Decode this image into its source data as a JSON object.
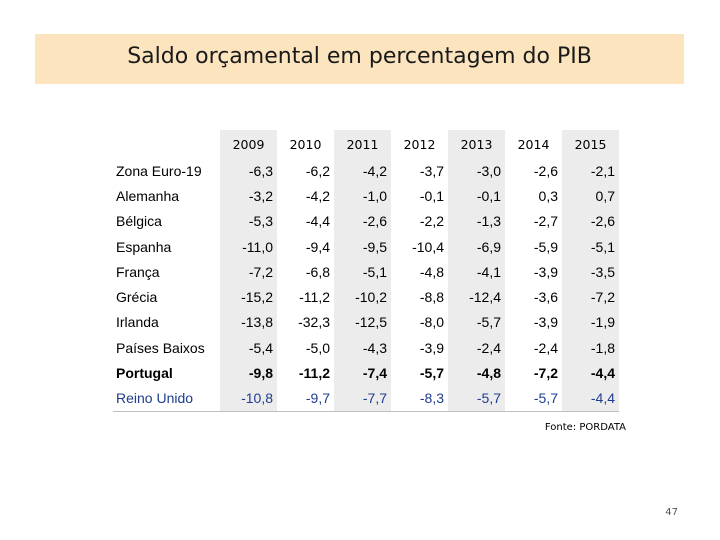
{
  "slide": {
    "title": "Saldo orçamental em percentagem do PIB",
    "source": "Fonte: PORDATA",
    "page_number": "47"
  },
  "chart_data": {
    "type": "table",
    "title": "Saldo orçamental em percentagem do PIB",
    "columns": [
      "2009",
      "2010",
      "2011",
      "2012",
      "2013",
      "2014",
      "2015"
    ],
    "rows": [
      {
        "label": "Zona Euro-19",
        "values": [
          "-6,3",
          "-6,2",
          "-4,2",
          "-3,7",
          "-3,0",
          "-2,6",
          "-2,1"
        ]
      },
      {
        "label": "Alemanha",
        "values": [
          "-3,2",
          "-4,2",
          "-1,0",
          "-0,1",
          "-0,1",
          "0,3",
          "0,7"
        ]
      },
      {
        "label": "Bélgica",
        "values": [
          "-5,3",
          "-4,4",
          "-2,6",
          "-2,2",
          "-1,3",
          "-2,7",
          "-2,6"
        ]
      },
      {
        "label": "Espanha",
        "values": [
          "-11,0",
          "-9,4",
          "-9,5",
          "-10,4",
          "-6,9",
          "-5,9",
          "-5,1"
        ]
      },
      {
        "label": "França",
        "values": [
          "-7,2",
          "-6,8",
          "-5,1",
          "-4,8",
          "-4,1",
          "-3,9",
          "-3,5"
        ]
      },
      {
        "label": "Grécia",
        "values": [
          "-15,2",
          "-11,2",
          "-10,2",
          "-8,8",
          "-12,4",
          "-3,6",
          "-7,2"
        ]
      },
      {
        "label": "Irlanda",
        "values": [
          "-13,8",
          "-32,3",
          "-12,5",
          "-8,0",
          "-5,7",
          "-3,9",
          "-1,9"
        ]
      },
      {
        "label": "Países Baixos",
        "values": [
          "-5,4",
          "-5,0",
          "-4,3",
          "-3,9",
          "-2,4",
          "-2,4",
          "-1,8"
        ]
      },
      {
        "label": "Portugal",
        "values": [
          "-9,8",
          "-11,2",
          "-7,4",
          "-5,7",
          "-4,8",
          "-7,2",
          "-4,4"
        ]
      },
      {
        "label": "Reino Unido",
        "values": [
          "-10,8",
          "-9,7",
          "-7,7",
          "-8,3",
          "-5,7",
          "-5,7",
          "-4,4"
        ]
      }
    ]
  },
  "styles": {
    "bold_row": "Portugal",
    "blue_row": "Reino Unido",
    "shaded_columns": [
      0,
      2,
      4,
      6
    ]
  }
}
